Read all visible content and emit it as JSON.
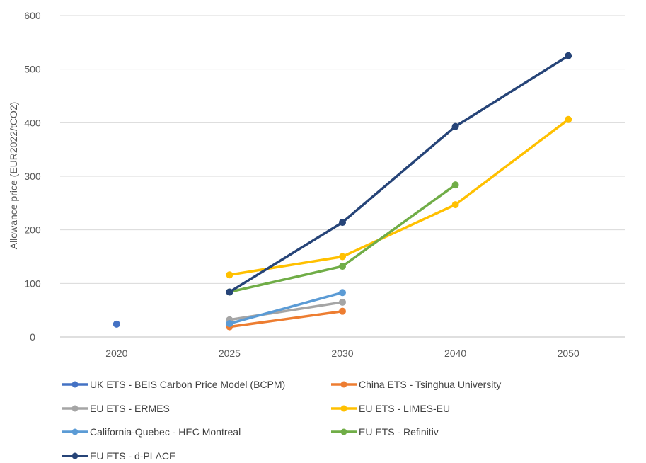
{
  "chart_data": {
    "type": "line",
    "title": "",
    "xlabel": "",
    "ylabel": "Allowance price (EUR2022/tCO2)",
    "categories": [
      "2020",
      "2025",
      "2030",
      "2040",
      "2050"
    ],
    "ylim": [
      0,
      600
    ],
    "yticks": [
      0,
      100,
      200,
      300,
      400,
      500,
      600
    ],
    "grid": "horizontal",
    "legend_position": "bottom",
    "series": [
      {
        "name": "UK ETS - BEIS Carbon Price Model (BCPM)",
        "color": "#4472C4",
        "values": [
          24,
          null,
          null,
          null,
          null
        ]
      },
      {
        "name": "China ETS - Tsinghua University",
        "color": "#ED7D31",
        "values": [
          null,
          19,
          48,
          null,
          null
        ]
      },
      {
        "name": "EU ETS - ERMES",
        "color": "#A5A5A5",
        "values": [
          null,
          32,
          65,
          null,
          null
        ]
      },
      {
        "name": "EU ETS - LIMES-EU",
        "color": "#FFC000",
        "values": [
          null,
          116,
          150,
          247,
          406
        ]
      },
      {
        "name": "California-Quebec - HEC Montreal",
        "color": "#5B9BD5",
        "values": [
          null,
          25,
          83,
          null,
          null
        ]
      },
      {
        "name": "EU ETS - Refinitiv",
        "color": "#70AD47",
        "values": [
          null,
          84,
          132,
          284,
          null
        ]
      },
      {
        "name": "EU ETS - d-PLACE",
        "color": "#264478",
        "values": [
          null,
          84,
          214,
          393,
          525
        ]
      }
    ]
  }
}
